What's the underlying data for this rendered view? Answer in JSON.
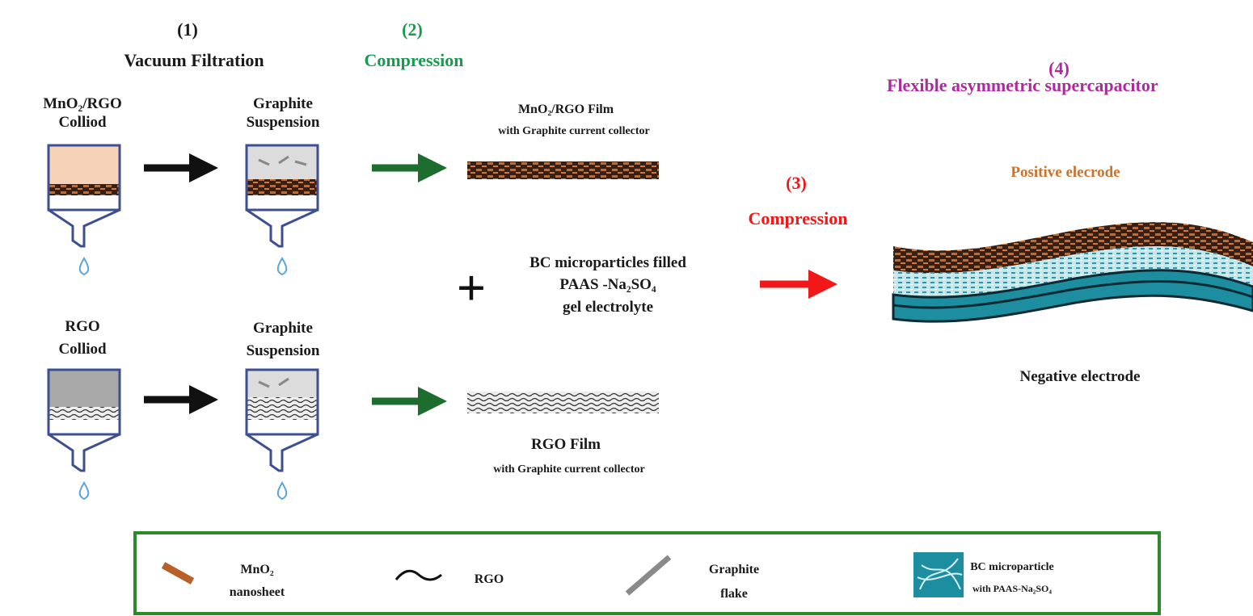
{
  "steps": {
    "step1": {
      "number": "(1)",
      "title": "Vacuum Filtration"
    },
    "step2": {
      "number": "(2)",
      "title": "Compression"
    },
    "step3": {
      "number": "(3)",
      "title": "Compression"
    },
    "step4": {
      "number": "(4)",
      "title": "Flexible asymmetric supercapacitor"
    }
  },
  "top_row": {
    "colloid": [
      "MnO₂/RGO",
      "Colliod"
    ],
    "suspension": [
      "Graphite",
      "Suspension"
    ],
    "film_title": "MnO₂/RGO Film",
    "film_subtitle": "with Graphite current collector"
  },
  "bottom_row": {
    "colloid": [
      "RGO",
      "Colliod"
    ],
    "suspension": [
      "Graphite",
      "Suspension"
    ],
    "film_title": "RGO Film",
    "film_subtitle": "with Graphite current collector"
  },
  "electrolyte": {
    "plus": "+",
    "lines": [
      "BC microparticles filled",
      "PAAS -Na₂SO₄",
      "gel electrolyte"
    ]
  },
  "device": {
    "positive_label": "Positive elecrode",
    "negative_label": "Negative electrode"
  },
  "legend": {
    "items": [
      {
        "icon": "mno2-nanosheet-icon",
        "lines": [
          "MnO₂",
          "nanosheet"
        ]
      },
      {
        "icon": "rgo-wave-icon",
        "lines": [
          "RGO"
        ]
      },
      {
        "icon": "graphite-flake-icon",
        "lines": [
          "Graphite",
          "flake"
        ]
      },
      {
        "icon": "bc-microparticle-icon",
        "lines": [
          "BC microparticle",
          "with PAAS-Na₂SO₄"
        ]
      }
    ]
  },
  "colors": {
    "step1": "#1a1a1a",
    "step2": "#1a9a50",
    "step3": "#f01818",
    "step4": "#b0279e",
    "positive": "#c8732e",
    "mno2": "#b9602a",
    "bc": "#1c8ea0",
    "legend_border": "#2a8a2a",
    "funnel": "#3d4f91"
  }
}
